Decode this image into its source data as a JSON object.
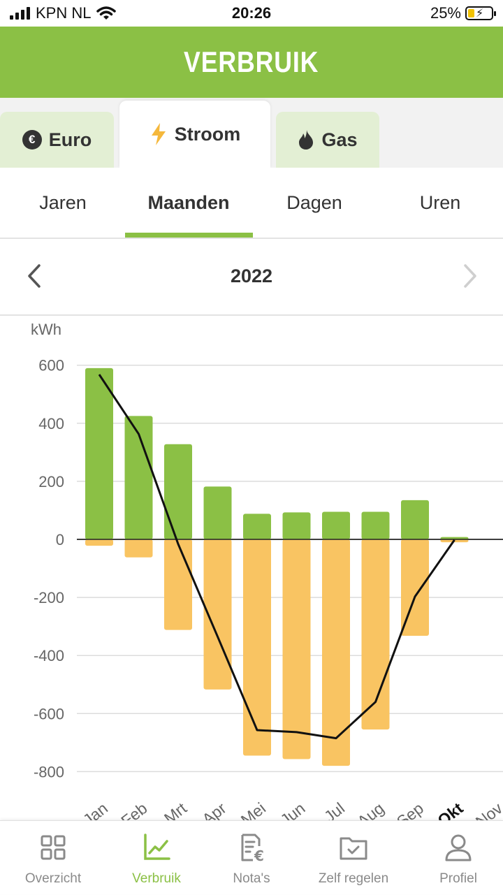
{
  "status_bar": {
    "carrier": "KPN NL",
    "time": "20:26",
    "battery": "25%"
  },
  "header": {
    "title": "VERBRUIK"
  },
  "energy_tabs": [
    {
      "label": "Euro",
      "icon": "euro-icon"
    },
    {
      "label": "Stroom",
      "icon": "lightning-icon",
      "active": true
    },
    {
      "label": "Gas",
      "icon": "flame-icon"
    }
  ],
  "period_tabs": [
    {
      "label": "Jaren"
    },
    {
      "label": "Maanden",
      "active": true
    },
    {
      "label": "Dagen"
    },
    {
      "label": "Uren"
    }
  ],
  "year_nav": {
    "year": "2022"
  },
  "colors": {
    "brand_green": "#8bc045",
    "bar_green": "#8bc045",
    "bar_orange": "#f9c462",
    "line": "#111111"
  },
  "chart_data": {
    "type": "bar",
    "ylabel": "kWh",
    "ylim": [
      -860,
      660
    ],
    "yticks": [
      600,
      400,
      200,
      0,
      -200,
      -400,
      -600,
      -800
    ],
    "yticklabels": [
      "600",
      "400",
      "200",
      "0",
      "-200",
      "-400",
      "-600",
      "-800"
    ],
    "grid": true,
    "categories": [
      "Jan",
      "Feb",
      "Mrt",
      "Apr",
      "Mei",
      "Jun",
      "Jul",
      "Aug",
      "Sep",
      "Okt",
      "Nov"
    ],
    "highlight_category": "Okt",
    "series": [
      {
        "kind": "bar",
        "values": [
          590,
          425,
          328,
          182,
          88,
          93,
          95,
          95,
          135,
          8,
          null
        ]
      },
      {
        "kind": "bar",
        "values": [
          -22,
          -62,
          -312,
          -517,
          -745,
          -757,
          -780,
          -655,
          -332,
          -10,
          null
        ]
      },
      {
        "kind": "line",
        "values": [
          568,
          363,
          -16,
          -335,
          -657,
          -664,
          -685,
          -560,
          -197,
          -2,
          null
        ]
      }
    ]
  },
  "bottom_nav": [
    {
      "label": "Overzicht",
      "icon": "grid-icon"
    },
    {
      "label": "Verbruik",
      "icon": "chart-icon",
      "active": true
    },
    {
      "label": "Nota's",
      "icon": "invoice-euro-icon"
    },
    {
      "label": "Zelf regelen",
      "icon": "folder-check-icon"
    },
    {
      "label": "Profiel",
      "icon": "person-icon"
    }
  ]
}
